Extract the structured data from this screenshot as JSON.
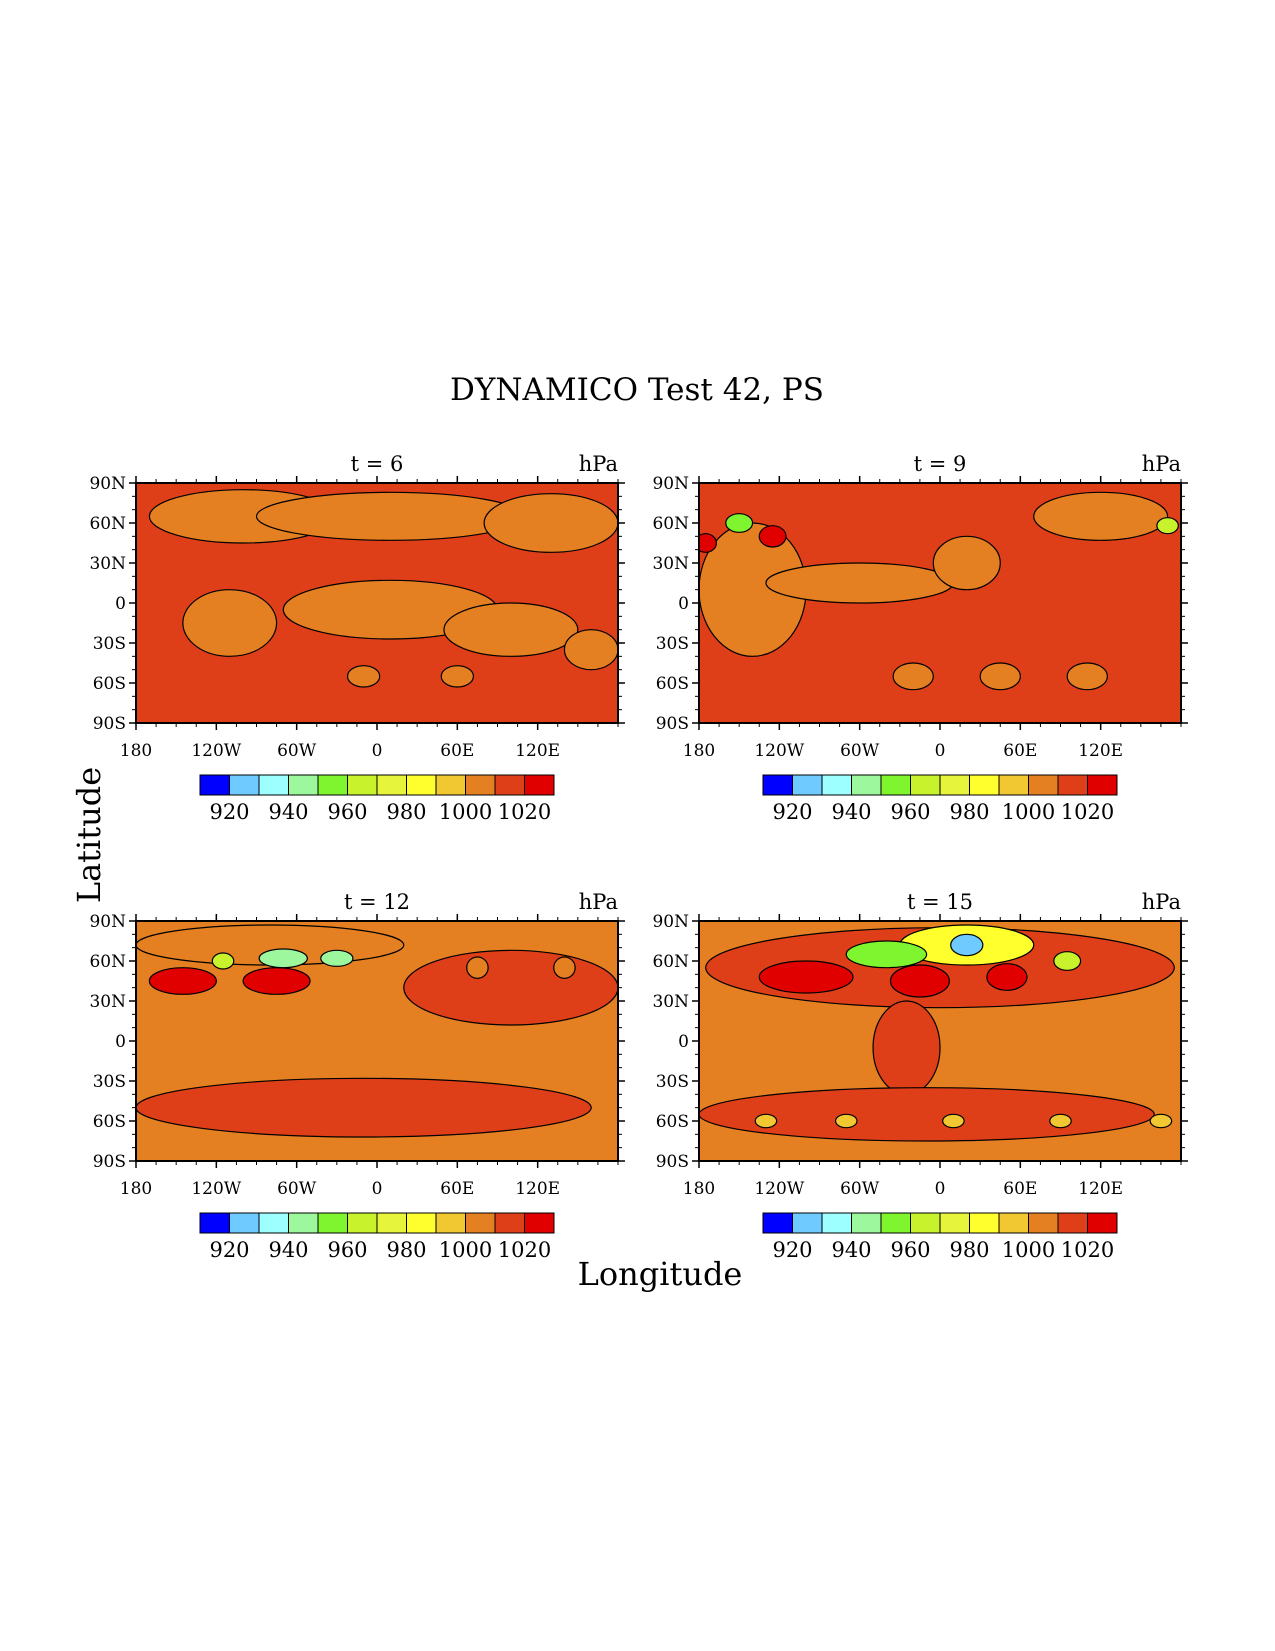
{
  "figure": {
    "title": "DYNAMICO Test 42, PS",
    "xlabel": "Longitude",
    "ylabel": "Latitude"
  },
  "chart_data": [
    {
      "type": "heatmap",
      "subtitle": "t = 6",
      "units": "hPa",
      "x_ticks": [
        "180",
        "120W",
        "60W",
        "0",
        "60E",
        "120E"
      ],
      "y_ticks": [
        "90N",
        "60N",
        "30N",
        "0",
        "30S",
        "60S",
        "90S"
      ],
      "xlim": [
        -180,
        180
      ],
      "ylim": [
        -90,
        90
      ],
      "background_level": 1005,
      "features": [
        {
          "lon": -100,
          "lat": 65,
          "rx": 70,
          "ry": 20,
          "level": 995
        },
        {
          "lon": 10,
          "lat": 65,
          "rx": 100,
          "ry": 18,
          "level": 995
        },
        {
          "lon": 130,
          "lat": 60,
          "rx": 50,
          "ry": 22,
          "level": 995
        },
        {
          "lon": 10,
          "lat": -5,
          "rx": 80,
          "ry": 22,
          "level": 995
        },
        {
          "lon": -110,
          "lat": -15,
          "rx": 35,
          "ry": 25,
          "level": 995
        },
        {
          "lon": 100,
          "lat": -20,
          "rx": 50,
          "ry": 20,
          "level": 995
        },
        {
          "lon": 160,
          "lat": -35,
          "rx": 20,
          "ry": 15,
          "level": 995
        },
        {
          "lon": -10,
          "lat": -55,
          "rx": 12,
          "ry": 8,
          "level": 995
        },
        {
          "lon": 60,
          "lat": -55,
          "rx": 12,
          "ry": 8,
          "level": 995
        }
      ]
    },
    {
      "type": "heatmap",
      "subtitle": "t = 9",
      "units": "hPa",
      "x_ticks": [
        "180",
        "120W",
        "60W",
        "0",
        "60E",
        "120E"
      ],
      "y_ticks": [
        "90N",
        "60N",
        "30N",
        "0",
        "30S",
        "60S",
        "90S"
      ],
      "xlim": [
        -180,
        180
      ],
      "ylim": [
        -90,
        90
      ],
      "background_level": 1005,
      "features": [
        {
          "lon": -140,
          "lat": 10,
          "rx": 40,
          "ry": 50,
          "level": 995
        },
        {
          "lon": -60,
          "lat": 15,
          "rx": 70,
          "ry": 15,
          "level": 995
        },
        {
          "lon": 20,
          "lat": 30,
          "rx": 25,
          "ry": 20,
          "level": 995
        },
        {
          "lon": 120,
          "lat": 65,
          "rx": 50,
          "ry": 18,
          "level": 995
        },
        {
          "lon": -150,
          "lat": 60,
          "rx": 10,
          "ry": 7,
          "level": 950
        },
        {
          "lon": 170,
          "lat": 58,
          "rx": 8,
          "ry": 6,
          "level": 955
        },
        {
          "lon": -175,
          "lat": 45,
          "rx": 8,
          "ry": 7,
          "level": 1020
        },
        {
          "lon": -125,
          "lat": 50,
          "rx": 10,
          "ry": 8,
          "level": 1015
        },
        {
          "lon": -20,
          "lat": -55,
          "rx": 15,
          "ry": 10,
          "level": 995
        },
        {
          "lon": 45,
          "lat": -55,
          "rx": 15,
          "ry": 10,
          "level": 995
        },
        {
          "lon": 110,
          "lat": -55,
          "rx": 15,
          "ry": 10,
          "level": 995
        }
      ]
    },
    {
      "type": "heatmap",
      "subtitle": "t = 12",
      "units": "hPa",
      "x_ticks": [
        "180",
        "120W",
        "60W",
        "0",
        "60E",
        "120E"
      ],
      "y_ticks": [
        "90N",
        "60N",
        "30N",
        "0",
        "30S",
        "60S",
        "90S"
      ],
      "xlim": [
        -180,
        180
      ],
      "ylim": [
        -90,
        90
      ],
      "background_level": 995,
      "features": [
        {
          "lon": -80,
          "lat": 72,
          "rx": 100,
          "ry": 15,
          "level": 995
        },
        {
          "lon": 100,
          "lat": 40,
          "rx": 80,
          "ry": 28,
          "level": 1005
        },
        {
          "lon": -10,
          "lat": -50,
          "rx": 170,
          "ry": 22,
          "level": 1005
        },
        {
          "lon": -145,
          "lat": 45,
          "rx": 25,
          "ry": 10,
          "level": 1020
        },
        {
          "lon": -75,
          "lat": 45,
          "rx": 25,
          "ry": 10,
          "level": 1020
        },
        {
          "lon": -70,
          "lat": 62,
          "rx": 18,
          "ry": 7,
          "level": 935
        },
        {
          "lon": -30,
          "lat": 62,
          "rx": 12,
          "ry": 6,
          "level": 940
        },
        {
          "lon": -115,
          "lat": 60,
          "rx": 8,
          "ry": 6,
          "level": 960
        },
        {
          "lon": 75,
          "lat": 55,
          "rx": 8,
          "ry": 8,
          "level": 995
        },
        {
          "lon": 140,
          "lat": 55,
          "rx": 8,
          "ry": 8,
          "level": 995
        }
      ]
    },
    {
      "type": "heatmap",
      "subtitle": "t = 15",
      "units": "hPa",
      "x_ticks": [
        "180",
        "120W",
        "60W",
        "0",
        "60E",
        "120E"
      ],
      "y_ticks": [
        "90N",
        "60N",
        "30N",
        "0",
        "30S",
        "60S",
        "90S"
      ],
      "xlim": [
        -180,
        180
      ],
      "ylim": [
        -90,
        90
      ],
      "background_level": 995,
      "features": [
        {
          "lon": 0,
          "lat": 55,
          "rx": 175,
          "ry": 30,
          "level": 1005
        },
        {
          "lon": -25,
          "lat": -5,
          "rx": 25,
          "ry": 35,
          "level": 1005
        },
        {
          "lon": -10,
          "lat": -55,
          "rx": 170,
          "ry": 20,
          "level": 1005
        },
        {
          "lon": 20,
          "lat": 72,
          "rx": 50,
          "ry": 15,
          "level": 975
        },
        {
          "lon": 20,
          "lat": 72,
          "rx": 12,
          "ry": 8,
          "level": 915
        },
        {
          "lon": -40,
          "lat": 65,
          "rx": 30,
          "ry": 10,
          "level": 950
        },
        {
          "lon": 95,
          "lat": 60,
          "rx": 10,
          "ry": 7,
          "level": 955
        },
        {
          "lon": -100,
          "lat": 48,
          "rx": 35,
          "ry": 12,
          "level": 1020
        },
        {
          "lon": -15,
          "lat": 45,
          "rx": 22,
          "ry": 12,
          "level": 1020
        },
        {
          "lon": 50,
          "lat": 48,
          "rx": 15,
          "ry": 10,
          "level": 1020
        },
        {
          "lon": -130,
          "lat": -60,
          "rx": 8,
          "ry": 5,
          "level": 985
        },
        {
          "lon": -70,
          "lat": -60,
          "rx": 8,
          "ry": 5,
          "level": 985
        },
        {
          "lon": 10,
          "lat": -60,
          "rx": 8,
          "ry": 5,
          "level": 985
        },
        {
          "lon": 90,
          "lat": -60,
          "rx": 8,
          "ry": 5,
          "level": 985
        },
        {
          "lon": 165,
          "lat": -60,
          "rx": 8,
          "ry": 5,
          "level": 985
        }
      ]
    }
  ],
  "colorbar": {
    "labels": [
      "920",
      "940",
      "960",
      "980",
      "1000",
      "1020"
    ],
    "levels": [
      910,
      920,
      930,
      940,
      950,
      960,
      970,
      980,
      990,
      1000,
      1010,
      1020
    ],
    "colors": [
      "#0000ff",
      "#6fcaff",
      "#9dffff",
      "#9df79d",
      "#7ff52f",
      "#c8f22c",
      "#e6f53c",
      "#ffff2e",
      "#f1c832",
      "#e47f22",
      "#df3f18",
      "#e00000"
    ]
  }
}
